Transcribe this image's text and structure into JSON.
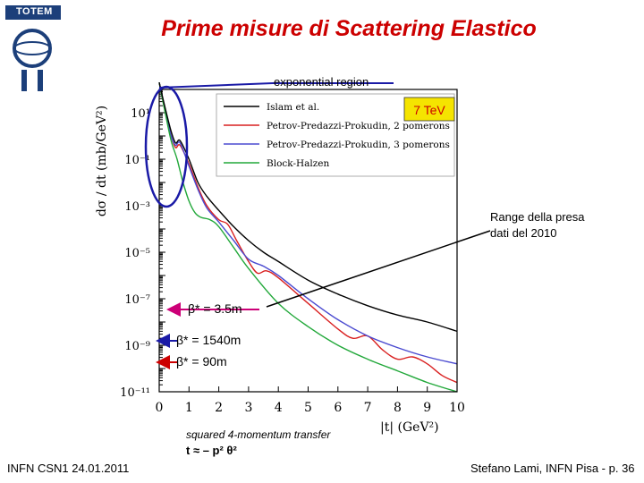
{
  "slide": {
    "title": "Prime misure di Scattering Elastico",
    "logo_text": "TOTEM",
    "footer_left": "INFN CSN1  24.01.2011",
    "footer_right": "Stefano Lami, INFN Pisa  - p. 36"
  },
  "annotations": {
    "exponential": "exponential region",
    "energy": "7 TeV",
    "range": "Range della presa dati del 2010",
    "range_line1": "Range della presa",
    "range_line2": "dati del 2010",
    "beta1": "β* = 3.5m",
    "beta2": "β* = 1540m",
    "beta3": "β* = 90m",
    "transfer": "squared 4-momentum transfer",
    "formula": "t ≈ – p² θ²"
  },
  "colors": {
    "title": "#cc0000",
    "circle": "#1a1aa6",
    "energy_box": "#f5e400",
    "energy_text": "#cc0000",
    "beta1_arrow": "#cc0077",
    "beta2_arrow": "#1a1aa6",
    "beta3_arrow": "#cc0000"
  },
  "chart_data": {
    "type": "line",
    "title": "",
    "xlabel": "|t|  (GeV²)",
    "ylabel": "dσ / dt  (mb/GeV²)",
    "xlim": [
      0,
      10
    ],
    "ylim_log10": [
      -11,
      2
    ],
    "log_y": true,
    "x_ticks": [
      "0",
      "1",
      "2",
      "3",
      "4",
      "5",
      "6",
      "7",
      "8",
      "9",
      "10"
    ],
    "y_ticks": [
      {
        "log": 1,
        "label": "10¹"
      },
      {
        "log": -1,
        "label": "10⁻¹"
      },
      {
        "log": -3,
        "label": "10⁻³"
      },
      {
        "log": -5,
        "label": "10⁻⁵"
      },
      {
        "log": -7,
        "label": "10⁻⁷"
      },
      {
        "log": -9,
        "label": "10⁻⁹"
      },
      {
        "log": -11,
        "label": "10⁻¹¹"
      }
    ],
    "legend_position": "top-right",
    "series": [
      {
        "name": "Islam et al.",
        "color": "#000000",
        "points": [
          [
            0,
            2.3
          ],
          [
            0.2,
            1.2
          ],
          [
            0.4,
            0.2
          ],
          [
            0.55,
            -0.3
          ],
          [
            0.7,
            -0.2
          ],
          [
            1.0,
            -1.0
          ],
          [
            1.3,
            -2.0
          ],
          [
            1.6,
            -2.6
          ],
          [
            2.0,
            -3.2
          ],
          [
            2.5,
            -3.9
          ],
          [
            3.0,
            -4.5
          ],
          [
            3.5,
            -5.0
          ],
          [
            4.0,
            -5.4
          ],
          [
            5.0,
            -6.2
          ],
          [
            6.0,
            -6.8
          ],
          [
            7.0,
            -7.3
          ],
          [
            8.0,
            -7.7
          ],
          [
            9.0,
            -8.0
          ],
          [
            10.0,
            -8.4
          ]
        ]
      },
      {
        "name": "Petrov-Predazzi-Prokudin, 2 pomerons",
        "color": "#d92020",
        "points": [
          [
            0,
            2.3
          ],
          [
            0.2,
            1.1
          ],
          [
            0.4,
            0.0
          ],
          [
            0.55,
            -0.5
          ],
          [
            0.7,
            -0.4
          ],
          [
            1.0,
            -1.2
          ],
          [
            1.3,
            -2.2
          ],
          [
            1.6,
            -3.0
          ],
          [
            2.0,
            -3.6
          ],
          [
            2.3,
            -3.8
          ],
          [
            2.6,
            -4.5
          ],
          [
            3.0,
            -5.4
          ],
          [
            3.3,
            -5.9
          ],
          [
            3.6,
            -5.8
          ],
          [
            4.0,
            -6.1
          ],
          [
            5.0,
            -7.2
          ],
          [
            6.0,
            -8.3
          ],
          [
            6.5,
            -8.7
          ],
          [
            7.0,
            -8.6
          ],
          [
            7.5,
            -9.2
          ],
          [
            8.0,
            -9.6
          ],
          [
            8.5,
            -9.5
          ],
          [
            9.0,
            -9.8
          ],
          [
            9.5,
            -10.3
          ],
          [
            10.0,
            -10.6
          ]
        ]
      },
      {
        "name": "Petrov-Predazzi-Prokudin, 3 pomerons",
        "color": "#4a4ad0",
        "points": [
          [
            0,
            2.3
          ],
          [
            0.2,
            1.1
          ],
          [
            0.4,
            0.0
          ],
          [
            0.55,
            -0.4
          ],
          [
            0.7,
            -0.3
          ],
          [
            1.0,
            -1.3
          ],
          [
            1.3,
            -2.3
          ],
          [
            1.6,
            -3.1
          ],
          [
            2.0,
            -3.7
          ],
          [
            2.5,
            -4.5
          ],
          [
            3.0,
            -5.3
          ],
          [
            3.5,
            -5.6
          ],
          [
            4.0,
            -6.0
          ],
          [
            5.0,
            -7.0
          ],
          [
            6.0,
            -7.9
          ],
          [
            7.0,
            -8.6
          ],
          [
            8.0,
            -9.1
          ],
          [
            9.0,
            -9.5
          ],
          [
            10.0,
            -9.8
          ]
        ]
      },
      {
        "name": "Block-Halzen",
        "color": "#22a83a",
        "points": [
          [
            0,
            2.3
          ],
          [
            0.2,
            1.0
          ],
          [
            0.4,
            -0.2
          ],
          [
            0.6,
            -1.0
          ],
          [
            0.8,
            -2.0
          ],
          [
            1.0,
            -2.8
          ],
          [
            1.2,
            -3.3
          ],
          [
            1.4,
            -3.5
          ],
          [
            1.7,
            -3.6
          ],
          [
            2.0,
            -3.9
          ],
          [
            2.5,
            -4.8
          ],
          [
            3.0,
            -5.7
          ],
          [
            4.0,
            -7.2
          ],
          [
            5.0,
            -8.2
          ],
          [
            6.0,
            -9.0
          ],
          [
            7.0,
            -9.6
          ],
          [
            8.0,
            -10.1
          ],
          [
            9.0,
            -10.6
          ],
          [
            10.0,
            -11.0
          ]
        ]
      }
    ]
  }
}
